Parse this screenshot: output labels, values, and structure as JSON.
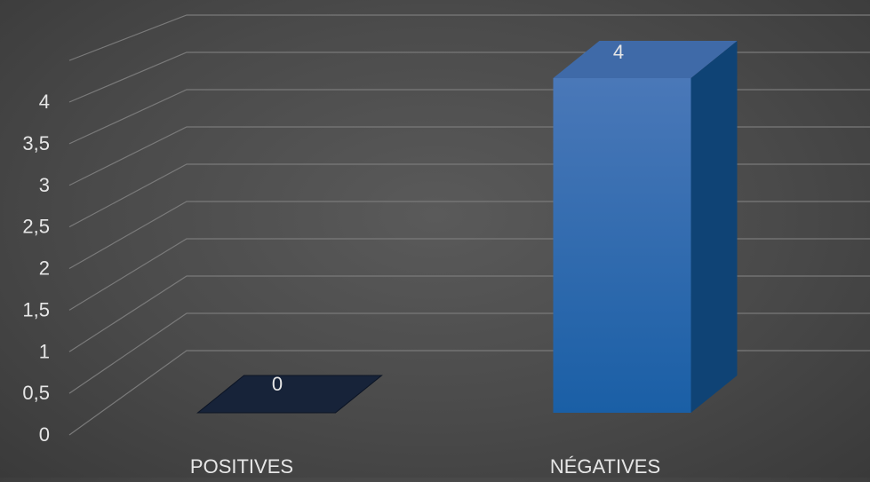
{
  "chart_data": {
    "type": "bar",
    "variant": "3d-column",
    "categories": [
      "POSITIVES",
      "NÉGATIVES"
    ],
    "values": [
      0,
      4
    ],
    "data_labels": [
      "0",
      "4"
    ],
    "yticks": [
      "0",
      "0,5",
      "1",
      "1,5",
      "2",
      "2,5",
      "3",
      "3,5",
      "4"
    ],
    "ylim": [
      0,
      4.5
    ],
    "grid": true,
    "legend": "none",
    "colors": {
      "background": "#4a4a4a",
      "gridline": "#7a7a7a",
      "text": "#e6e6e6",
      "bar_front_top": "#4a78b8",
      "bar_front_bottom": "#1a5fa6",
      "bar_side": "#0f4375",
      "bar_top": "#3f6aa8",
      "zero_bar": "#172339"
    }
  }
}
